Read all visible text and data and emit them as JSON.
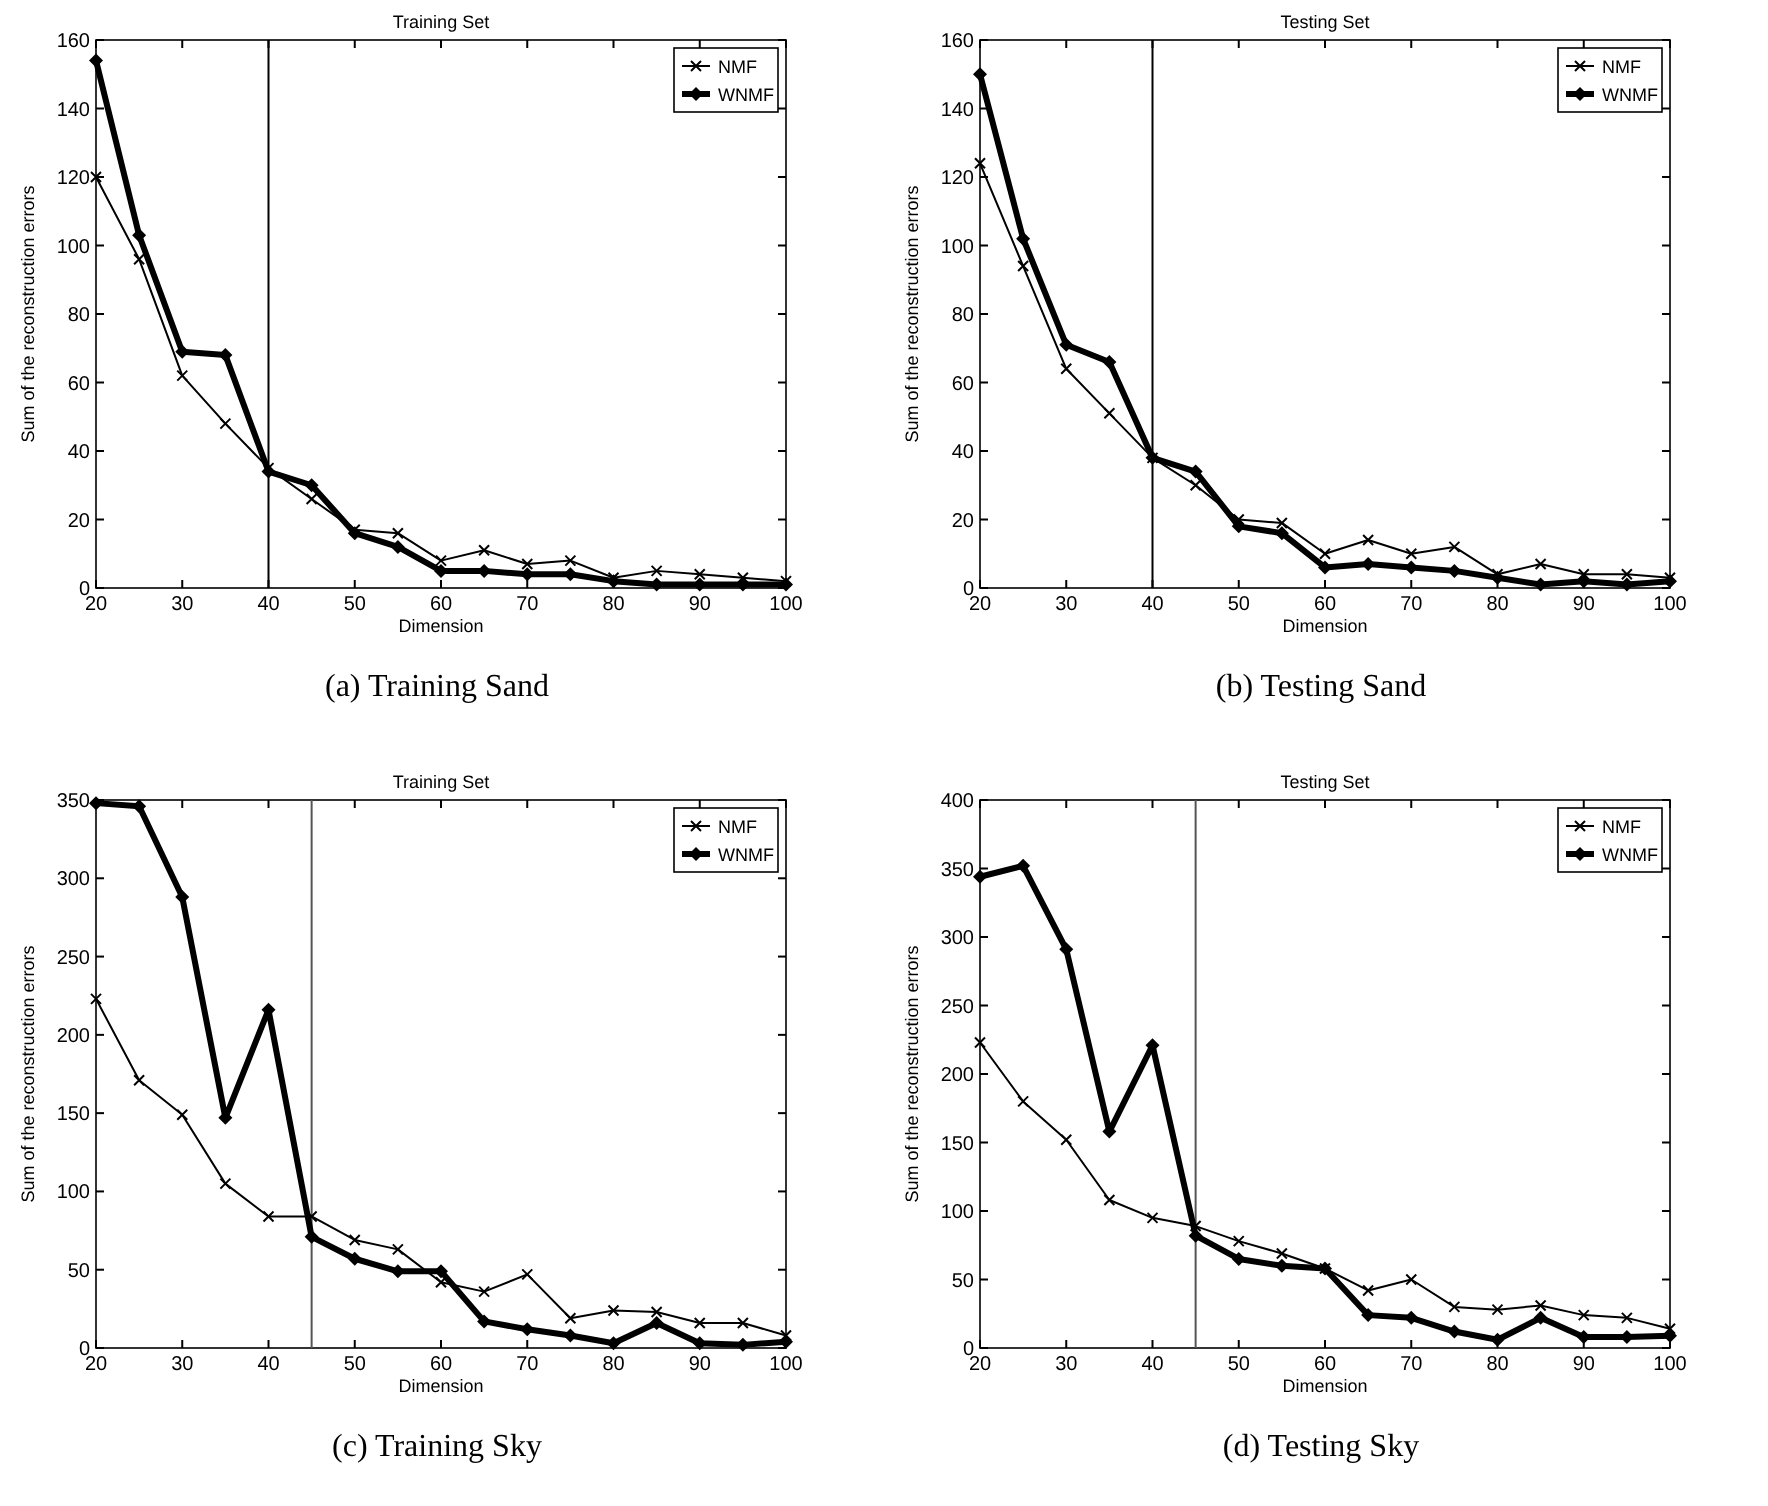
{
  "chart_data": [
    {
      "type": "line",
      "title": "Training Set",
      "xlabel": "Dimension",
      "ylabel": "Sum of the reconstruction errors",
      "annotations": [
        "(a) Training Sand"
      ],
      "x": [
        20,
        25,
        30,
        35,
        40,
        45,
        50,
        55,
        60,
        65,
        70,
        75,
        80,
        85,
        90,
        95,
        100
      ],
      "xlim": [
        20,
        100
      ],
      "xticks": [
        20,
        30,
        40,
        50,
        60,
        70,
        80,
        90,
        100
      ],
      "ylim": [
        0,
        160
      ],
      "yticks": [
        0,
        20,
        40,
        60,
        80,
        100,
        120,
        140,
        160
      ],
      "legend": "top right",
      "grid": false,
      "ref_lines": [
        {
          "axis": "x",
          "value": 40,
          "color": "#000000"
        }
      ],
      "series": [
        {
          "name": "NMF",
          "color": "#000000",
          "marker": "cross",
          "values": [
            120,
            96,
            62,
            48,
            35,
            26,
            17,
            16,
            8,
            11,
            7,
            8,
            3,
            5,
            4,
            3,
            2
          ]
        },
        {
          "name": "WNMF",
          "color": "#000000",
          "marker": "diamond",
          "values": [
            154,
            103,
            69,
            68,
            34,
            30,
            16,
            12,
            5,
            5,
            4,
            4,
            2,
            1,
            1,
            1,
            1
          ]
        }
      ]
    },
    {
      "type": "line",
      "title": "Testing Set",
      "xlabel": "Dimension",
      "ylabel": "Sum of the reconstruction errors",
      "annotations": [
        "(b) Testing Sand"
      ],
      "x": [
        20,
        25,
        30,
        35,
        40,
        45,
        50,
        55,
        60,
        65,
        70,
        75,
        80,
        85,
        90,
        95,
        100
      ],
      "xlim": [
        20,
        100
      ],
      "xticks": [
        20,
        30,
        40,
        50,
        60,
        70,
        80,
        90,
        100
      ],
      "ylim": [
        0,
        160
      ],
      "yticks": [
        0,
        20,
        40,
        60,
        80,
        100,
        120,
        140,
        160
      ],
      "legend": "top right",
      "grid": false,
      "ref_lines": [
        {
          "axis": "x",
          "value": 40,
          "color": "#000000"
        }
      ],
      "series": [
        {
          "name": "NMF",
          "color": "#000000",
          "marker": "cross",
          "values": [
            124,
            94,
            64,
            51,
            38,
            30,
            20,
            19,
            10,
            14,
            10,
            12,
            4,
            7,
            4,
            4,
            3
          ]
        },
        {
          "name": "WNMF",
          "color": "#000000",
          "marker": "diamond",
          "values": [
            150,
            102,
            71,
            66,
            38,
            34,
            18,
            16,
            6,
            7,
            6,
            5,
            3,
            1,
            2,
            1,
            2
          ]
        }
      ]
    },
    {
      "type": "line",
      "title": "Training Set",
      "xlabel": "Dimension",
      "ylabel": "Sum of the reconstruction errors",
      "annotations": [
        "(c) Training Sky"
      ],
      "x": [
        20,
        25,
        30,
        35,
        40,
        45,
        50,
        55,
        60,
        65,
        70,
        75,
        80,
        85,
        90,
        95,
        100
      ],
      "xlim": [
        20,
        100
      ],
      "xticks": [
        20,
        30,
        40,
        50,
        60,
        70,
        80,
        90,
        100
      ],
      "ylim": [
        0,
        350
      ],
      "yticks": [
        0,
        50,
        100,
        150,
        200,
        250,
        300,
        350
      ],
      "legend": "top right",
      "grid": false,
      "ref_lines": [
        {
          "axis": "x",
          "value": 45,
          "color": "#555555"
        }
      ],
      "series": [
        {
          "name": "NMF",
          "color": "#000000",
          "marker": "cross",
          "values": [
            223,
            171,
            149,
            105,
            84,
            84,
            69,
            63,
            42,
            36,
            47,
            19,
            24,
            23,
            16,
            16,
            8
          ]
        },
        {
          "name": "WNMF",
          "color": "#000000",
          "marker": "diamond",
          "values": [
            348,
            346,
            288,
            147,
            216,
            71,
            57,
            49,
            49,
            17,
            12,
            8,
            3,
            16,
            3,
            2,
            4
          ]
        }
      ]
    },
    {
      "type": "line",
      "title": "Testing Set",
      "xlabel": "Dimension",
      "ylabel": "Sum of the reconstruction errors",
      "annotations": [
        "(d) Testing Sky"
      ],
      "x": [
        20,
        25,
        30,
        35,
        40,
        45,
        50,
        55,
        60,
        65,
        70,
        75,
        80,
        85,
        90,
        95,
        100
      ],
      "xlim": [
        20,
        100
      ],
      "xticks": [
        20,
        30,
        40,
        50,
        60,
        70,
        80,
        90,
        100
      ],
      "ylim": [
        0,
        400
      ],
      "yticks": [
        0,
        50,
        100,
        150,
        200,
        250,
        300,
        350,
        400
      ],
      "legend": "top right",
      "grid": false,
      "ref_lines": [
        {
          "axis": "x",
          "value": 45,
          "color": "#555555"
        }
      ],
      "series": [
        {
          "name": "NMF",
          "color": "#000000",
          "marker": "cross",
          "values": [
            223,
            180,
            152,
            108,
            95,
            89,
            78,
            69,
            58,
            42,
            50,
            30,
            28,
            31,
            24,
            22,
            14
          ]
        },
        {
          "name": "WNMF",
          "color": "#000000",
          "marker": "diamond",
          "values": [
            344,
            352,
            291,
            158,
            221,
            82,
            65,
            60,
            58,
            24,
            22,
            12,
            6,
            22,
            8,
            8,
            9
          ]
        }
      ]
    }
  ]
}
